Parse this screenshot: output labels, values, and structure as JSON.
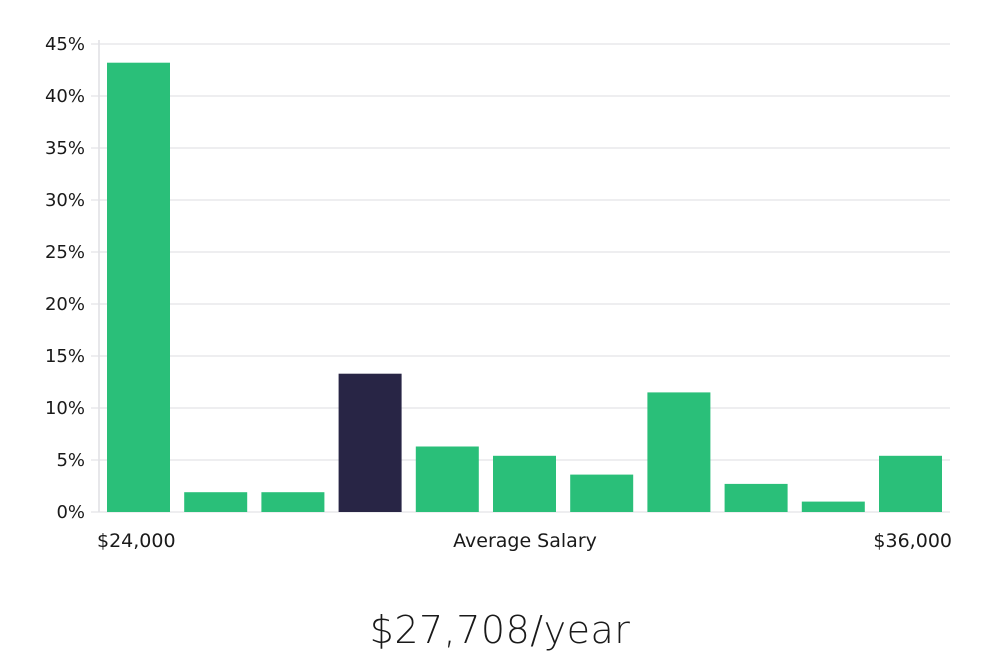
{
  "chart_data": {
    "type": "bar",
    "title": "",
    "xlabel": "Average Salary",
    "ylabel": "",
    "x_range_labels": [
      "$24,000",
      "$36,000"
    ],
    "ylim": [
      0,
      45
    ],
    "yticks": [
      0,
      5,
      10,
      15,
      20,
      25,
      30,
      35,
      40,
      45
    ],
    "ytick_labels": [
      "0%",
      "5%",
      "10%",
      "15%",
      "20%",
      "25%",
      "30%",
      "35%",
      "40%",
      "45%"
    ],
    "values": [
      43.2,
      1.9,
      1.9,
      13.3,
      6.3,
      5.4,
      3.6,
      11.5,
      2.7,
      1.0,
      5.4
    ],
    "highlight_index": 3,
    "grid": true,
    "colors": {
      "bar": "#2abf79",
      "highlight": "#282545",
      "grid": "#e3e3e6",
      "axis": "#cfcfd6"
    }
  },
  "summary": {
    "average_salary": "$27,708/year"
  }
}
